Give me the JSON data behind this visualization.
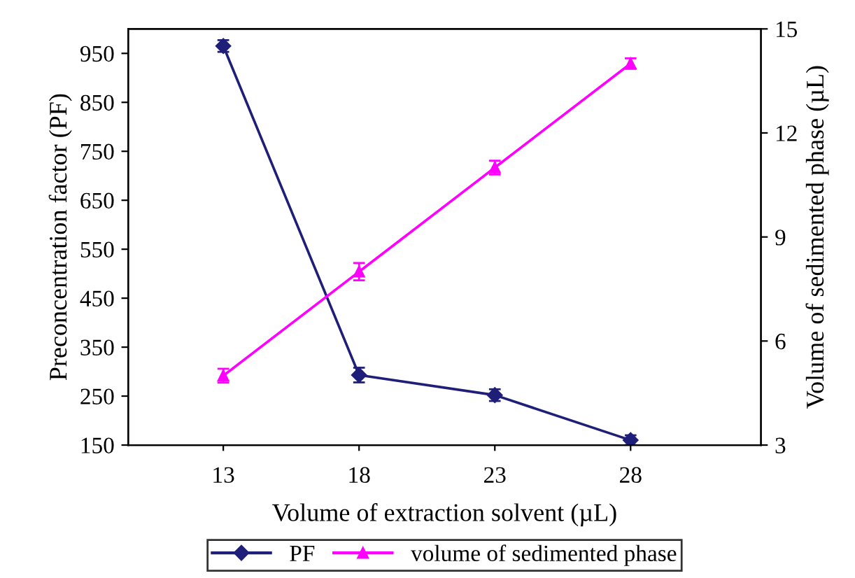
{
  "chart_data": {
    "type": "line",
    "xlabel": "Volume of extraction solvent (µL)",
    "ylabel": "Preconcentration factor (PF)",
    "y2label": "Volume of sedimented phase (µL)",
    "x": [
      13,
      18,
      23,
      28
    ],
    "series": [
      {
        "name": "PF",
        "color": "#1f1f7a",
        "marker": "diamond",
        "values": [
          965,
          293,
          252,
          160
        ],
        "errors": [
          12,
          15,
          12,
          10
        ]
      },
      {
        "name": "volume of sedimented phase",
        "color": "#ff00ff",
        "marker": "triangle",
        "axis": "y2",
        "values": [
          5,
          8,
          11,
          14
        ],
        "errors": [
          0.2,
          0.25,
          0.2,
          0.15
        ]
      }
    ],
    "xlim": [
      9.5,
      32.8
    ],
    "xticks": [
      13,
      18,
      23,
      28
    ],
    "ylim": [
      150,
      1000
    ],
    "yticks": [
      150,
      250,
      350,
      450,
      550,
      650,
      750,
      850,
      950
    ],
    "y2lim": [
      3,
      15
    ],
    "y2ticks": [
      3,
      6,
      9,
      12,
      15
    ],
    "grid": false,
    "legend": "bottom",
    "line_style": "solid"
  }
}
